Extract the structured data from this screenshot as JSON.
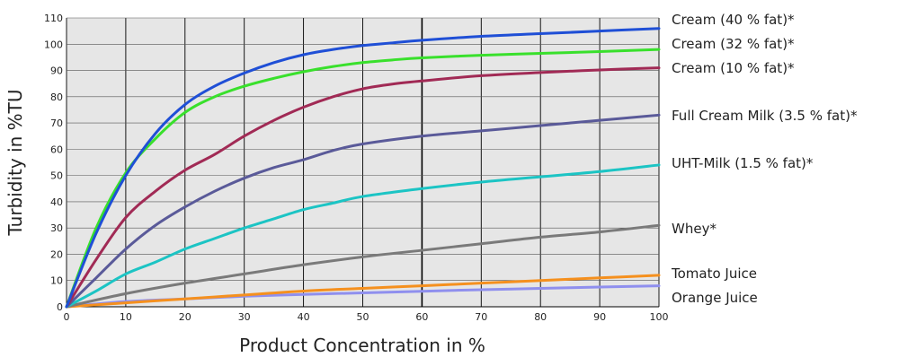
{
  "chart_data": {
    "type": "line",
    "title": "",
    "xlabel": "Product Concentration in %",
    "ylabel": "Turbidity in %TU",
    "xlim": [
      0,
      100
    ],
    "ylim": [
      0,
      110
    ],
    "x_ticks": [
      0,
      10,
      20,
      30,
      40,
      50,
      60,
      70,
      80,
      90,
      100
    ],
    "y_ticks": [
      0,
      10,
      20,
      30,
      40,
      50,
      60,
      70,
      80,
      90,
      100,
      110
    ],
    "grid": true,
    "legend": "labels at right end of each line",
    "plot_background": "#e6e6e6",
    "series": [
      {
        "name": "Cream (40 % fat)*",
        "color": "#1f4fd6",
        "x": [
          0,
          5,
          10,
          15,
          20,
          25,
          30,
          35,
          40,
          45,
          50,
          55,
          60,
          70,
          80,
          90,
          100
        ],
        "y": [
          0,
          28,
          50,
          66,
          77,
          84,
          89,
          93,
          96,
          98,
          99.5,
          100.5,
          101.5,
          103,
          104,
          105,
          106
        ]
      },
      {
        "name": "Cream (32 % fat)*",
        "color": "#39e02c",
        "x": [
          0,
          5,
          10,
          15,
          20,
          25,
          30,
          35,
          40,
          45,
          50,
          55,
          60,
          70,
          80,
          90,
          100
        ],
        "y": [
          0,
          30,
          51,
          64,
          74,
          80,
          84,
          87,
          89.5,
          91.5,
          93,
          94,
          94.8,
          95.8,
          96.5,
          97.2,
          98
        ]
      },
      {
        "name": "Cream (10 % fat)*",
        "color": "#a12a55",
        "x": [
          0,
          5,
          10,
          15,
          20,
          25,
          30,
          35,
          40,
          45,
          50,
          55,
          60,
          70,
          80,
          90,
          100
        ],
        "y": [
          0,
          18,
          34,
          44,
          52,
          58,
          65,
          71,
          76,
          80,
          83,
          84.8,
          86,
          88,
          89.2,
          90.2,
          91
        ]
      },
      {
        "name": "Full Cream Milk (3.5 % fat)*",
        "color": "#5a5a99",
        "x": [
          0,
          5,
          10,
          15,
          20,
          25,
          30,
          35,
          40,
          45,
          50,
          60,
          70,
          80,
          90,
          100
        ],
        "y": [
          0,
          11,
          22,
          31,
          38,
          44,
          49,
          53,
          56,
          59.5,
          62,
          65,
          67,
          69,
          71,
          73
        ]
      },
      {
        "name": "UHT-Milk (1.5 % fat)*",
        "color": "#1cc4c4",
        "x": [
          0,
          5,
          10,
          15,
          20,
          25,
          30,
          35,
          40,
          45,
          50,
          60,
          70,
          80,
          90,
          100
        ],
        "y": [
          0,
          6,
          12.5,
          17,
          22,
          26,
          30,
          33.5,
          37,
          39.5,
          42,
          45,
          47.5,
          49.5,
          51.5,
          54
        ]
      },
      {
        "name": "Whey*",
        "color": "#7a7a7a",
        "x": [
          0,
          10,
          20,
          30,
          40,
          50,
          60,
          70,
          80,
          90,
          100
        ],
        "y": [
          0,
          5,
          9,
          12.5,
          16,
          19,
          21.5,
          24,
          26.5,
          28.5,
          31
        ]
      },
      {
        "name": "Tomato Juice",
        "color": "#f5901e",
        "x": [
          0,
          10,
          20,
          30,
          40,
          50,
          60,
          70,
          80,
          90,
          100
        ],
        "y": [
          0,
          1.5,
          3,
          4.5,
          6,
          7,
          8,
          9,
          10,
          11,
          12
        ]
      },
      {
        "name": "Orange Juice",
        "color": "#8f8fee",
        "x": [
          0,
          10,
          20,
          30,
          40,
          50,
          60,
          70,
          80,
          90,
          100
        ],
        "y": [
          0,
          2,
          3,
          4,
          4.7,
          5.3,
          5.9,
          6.5,
          7,
          7.5,
          8
        ]
      }
    ]
  }
}
